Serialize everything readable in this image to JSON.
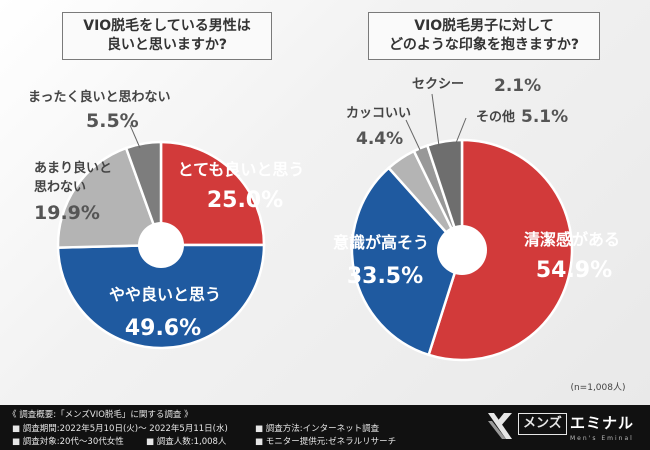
{
  "chart_data": [
    {
      "type": "pie",
      "title": [
        "VIO脱毛をしている男性は",
        "良いと思いますか?"
      ],
      "slices": [
        {
          "label": "とても良いと思う",
          "value": 25.0,
          "value_label": "25.0%",
          "color": "#d23a3a"
        },
        {
          "label": "やや良いと思う",
          "value": 49.6,
          "value_label": "49.6%",
          "color": "#1f5aa0"
        },
        {
          "label": "あまり良いと思わない",
          "value": 19.9,
          "value_label": "19.9%",
          "color": "#b4b4b4"
        },
        {
          "label": "まったく良いと思わない",
          "value": 5.5,
          "value_label": "5.5%",
          "color": "#7d7d7d"
        }
      ]
    },
    {
      "type": "pie",
      "title": [
        "VIO脱毛男子に対して",
        "どのような印象を抱きますか?"
      ],
      "slices": [
        {
          "label": "清潔感がある",
          "value": 54.9,
          "value_label": "54.9%",
          "color": "#d23a3a"
        },
        {
          "label": "意識が高そう",
          "value": 33.5,
          "value_label": "33.5%",
          "color": "#1f5aa0"
        },
        {
          "label": "カッコいい",
          "value": 4.4,
          "value_label": "4.4%",
          "color": "#b4b4b4"
        },
        {
          "label": "セクシー",
          "value": 2.1,
          "value_label": "2.1%",
          "color": "#989898"
        },
        {
          "label": "その他",
          "value": 5.1,
          "value_label": "5.1%",
          "color": "#6e6e6e"
        }
      ]
    }
  ],
  "labels1": {
    "l0": "とても良いと思う",
    "v0": "25.0%",
    "l1": "やや良いと思う",
    "v1": "49.6%",
    "l2a": "あまり良いと",
    "l2b": "思わない",
    "v2": "19.9%",
    "l3": "まったく良いと思わない",
    "v3": "5.5%"
  },
  "labels2": {
    "l0": "清潔感がある",
    "v0": "54.9%",
    "l1": "意識が高そう",
    "v1": "33.5%",
    "l2": "カッコいい",
    "v2": "4.4%",
    "l3": "セクシー",
    "v3": "2.1%",
    "l4": "その他",
    "v4": "5.1%"
  },
  "sample_note": "(n=1,008人)",
  "footer": {
    "heading": "《 調査概要:「メンズVIO脱毛」に関する調査 》",
    "period": "■ 調査期間:2022年5月10日(火)〜 2022年5月11日(水)",
    "method": "■ 調査方法:インターネット調査",
    "target": "■ 調査対象:20代〜30代女性",
    "count": "■ 調査人数:1,008人",
    "provider": "■ モニター提供元:ゼネラルリサーチ"
  },
  "logo": {
    "word1": "メンズ",
    "word2": "エミナル",
    "sub": "Men's Eminal"
  }
}
